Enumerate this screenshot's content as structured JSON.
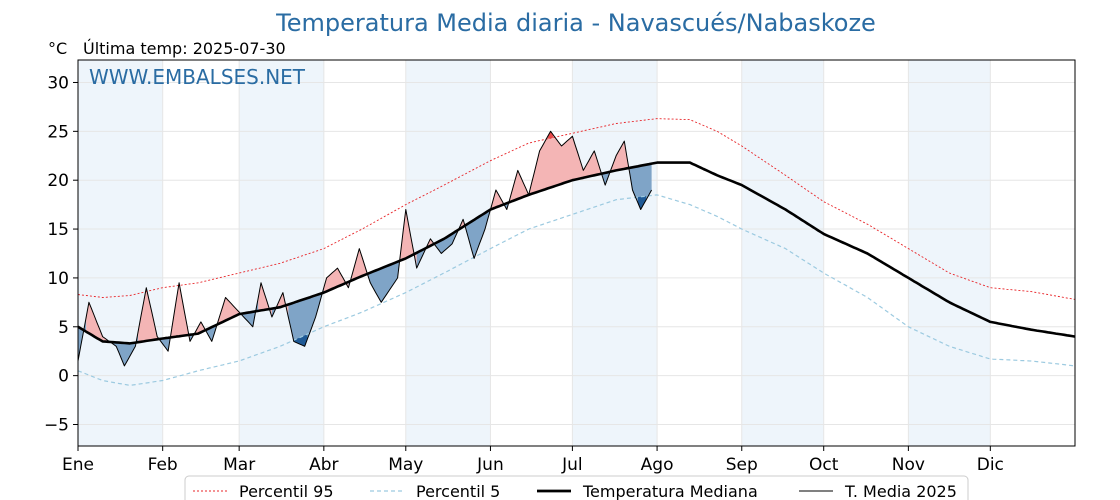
{
  "chart_data": {
    "type": "line",
    "title": "Temperatura Media diaria - Navascués/Nabaskoze",
    "unit_label": "°C",
    "last_temp_label": "Última temp: 2025-07-30",
    "watermark": "WWW.EMBALSES.NET",
    "ylim": [
      -7.2,
      32.3
    ],
    "yticks": [
      -5,
      0,
      5,
      10,
      15,
      20,
      25,
      30
    ],
    "ytick_labels": [
      "−5",
      "0",
      "5",
      "10",
      "15",
      "20",
      "25",
      "30"
    ],
    "xlim": [
      1,
      366
    ],
    "month_starts": [
      1,
      32,
      60,
      91,
      121,
      152,
      182,
      213,
      244,
      274,
      305,
      335
    ],
    "month_labels": [
      "Ene",
      "Feb",
      "Mar",
      "Abr",
      "May",
      "Jun",
      "Jul",
      "Ago",
      "Sep",
      "Oct",
      "Nov",
      "Dic"
    ],
    "grid": true,
    "legend_position": "bottom-center",
    "colors": {
      "title": "#2a6ca3",
      "p95": "#e8262a",
      "p5": "#9ccae0",
      "median": "#000000",
      "current": "#000000",
      "above_fill": "#f4b5b5",
      "above_fill_strong": "#e84a4a",
      "below_fill": "#7fa4c7",
      "below_fill_strong": "#1f5a96",
      "month_band": "#eef5fb"
    },
    "series": [
      {
        "name": "Percentil 95",
        "style": "dotted",
        "anchors": [
          [
            1,
            8.3
          ],
          [
            10,
            8.0
          ],
          [
            20,
            8.2
          ],
          [
            32,
            9.0
          ],
          [
            45,
            9.5
          ],
          [
            60,
            10.5
          ],
          [
            75,
            11.5
          ],
          [
            91,
            13.0
          ],
          [
            105,
            15.0
          ],
          [
            121,
            17.5
          ],
          [
            135,
            19.5
          ],
          [
            152,
            22.0
          ],
          [
            166,
            23.8
          ],
          [
            182,
            24.8
          ],
          [
            198,
            25.8
          ],
          [
            213,
            26.3
          ],
          [
            225,
            26.2
          ],
          [
            235,
            25.0
          ],
          [
            244,
            23.5
          ],
          [
            260,
            20.5
          ],
          [
            274,
            17.8
          ],
          [
            290,
            15.5
          ],
          [
            305,
            13.0
          ],
          [
            320,
            10.5
          ],
          [
            335,
            9.0
          ],
          [
            350,
            8.6
          ],
          [
            366,
            7.8
          ]
        ]
      },
      {
        "name": "Percentil 5",
        "style": "dashed",
        "anchors": [
          [
            1,
            0.5
          ],
          [
            10,
            -0.5
          ],
          [
            20,
            -1.0
          ],
          [
            32,
            -0.5
          ],
          [
            45,
            0.5
          ],
          [
            60,
            1.5
          ],
          [
            75,
            3.0
          ],
          [
            91,
            5.0
          ],
          [
            105,
            6.5
          ],
          [
            121,
            8.5
          ],
          [
            135,
            10.5
          ],
          [
            152,
            13.0
          ],
          [
            166,
            15.0
          ],
          [
            182,
            16.5
          ],
          [
            198,
            18.0
          ],
          [
            213,
            18.5
          ],
          [
            225,
            17.5
          ],
          [
            235,
            16.3
          ],
          [
            244,
            15.0
          ],
          [
            260,
            13.0
          ],
          [
            274,
            10.5
          ],
          [
            290,
            8.0
          ],
          [
            305,
            5.0
          ],
          [
            320,
            3.0
          ],
          [
            335,
            1.7
          ],
          [
            350,
            1.5
          ],
          [
            366,
            1.0
          ]
        ]
      },
      {
        "name": "Temperatura Mediana",
        "style": "solid-thick",
        "anchors": [
          [
            1,
            5.0
          ],
          [
            10,
            3.5
          ],
          [
            20,
            3.3
          ],
          [
            32,
            3.8
          ],
          [
            45,
            4.3
          ],
          [
            60,
            6.3
          ],
          [
            75,
            7.0
          ],
          [
            91,
            8.5
          ],
          [
            105,
            10.2
          ],
          [
            121,
            12.0
          ],
          [
            135,
            14.0
          ],
          [
            152,
            17.0
          ],
          [
            166,
            18.5
          ],
          [
            182,
            20.0
          ],
          [
            198,
            21.0
          ],
          [
            213,
            21.8
          ],
          [
            225,
            21.8
          ],
          [
            235,
            20.5
          ],
          [
            244,
            19.5
          ],
          [
            260,
            17.0
          ],
          [
            274,
            14.5
          ],
          [
            290,
            12.5
          ],
          [
            305,
            10.0
          ],
          [
            320,
            7.5
          ],
          [
            335,
            5.5
          ],
          [
            350,
            4.7
          ],
          [
            366,
            4.0
          ]
        ]
      },
      {
        "name": "T. Media 2025",
        "style": "solid-thin",
        "last_day": 211,
        "anchors": [
          [
            1,
            1.5
          ],
          [
            5,
            7.5
          ],
          [
            10,
            4.0
          ],
          [
            15,
            3.0
          ],
          [
            18,
            1.0
          ],
          [
            22,
            3.0
          ],
          [
            26,
            9.0
          ],
          [
            30,
            4.0
          ],
          [
            34,
            2.5
          ],
          [
            38,
            9.5
          ],
          [
            42,
            3.5
          ],
          [
            46,
            5.5
          ],
          [
            50,
            3.5
          ],
          [
            55,
            8.0
          ],
          [
            60,
            6.5
          ],
          [
            65,
            5.0
          ],
          [
            68,
            9.5
          ],
          [
            72,
            6.0
          ],
          [
            76,
            8.5
          ],
          [
            80,
            3.5
          ],
          [
            84,
            3.0
          ],
          [
            88,
            6.0
          ],
          [
            92,
            10.0
          ],
          [
            96,
            11.0
          ],
          [
            100,
            9.0
          ],
          [
            104,
            13.0
          ],
          [
            108,
            9.5
          ],
          [
            112,
            7.5
          ],
          [
            118,
            10.0
          ],
          [
            121,
            17.0
          ],
          [
            125,
            11.0
          ],
          [
            130,
            14.0
          ],
          [
            134,
            12.5
          ],
          [
            138,
            13.5
          ],
          [
            142,
            16.0
          ],
          [
            146,
            12.0
          ],
          [
            150,
            15.0
          ],
          [
            154,
            19.0
          ],
          [
            158,
            17.0
          ],
          [
            162,
            21.0
          ],
          [
            166,
            18.5
          ],
          [
            170,
            23.0
          ],
          [
            174,
            25.0
          ],
          [
            178,
            23.5
          ],
          [
            182,
            24.5
          ],
          [
            186,
            21.0
          ],
          [
            190,
            23.0
          ],
          [
            194,
            19.5
          ],
          [
            198,
            22.5
          ],
          [
            201,
            24.0
          ],
          [
            204,
            19.0
          ],
          [
            207,
            17.0
          ],
          [
            211,
            19.0
          ]
        ]
      }
    ]
  }
}
